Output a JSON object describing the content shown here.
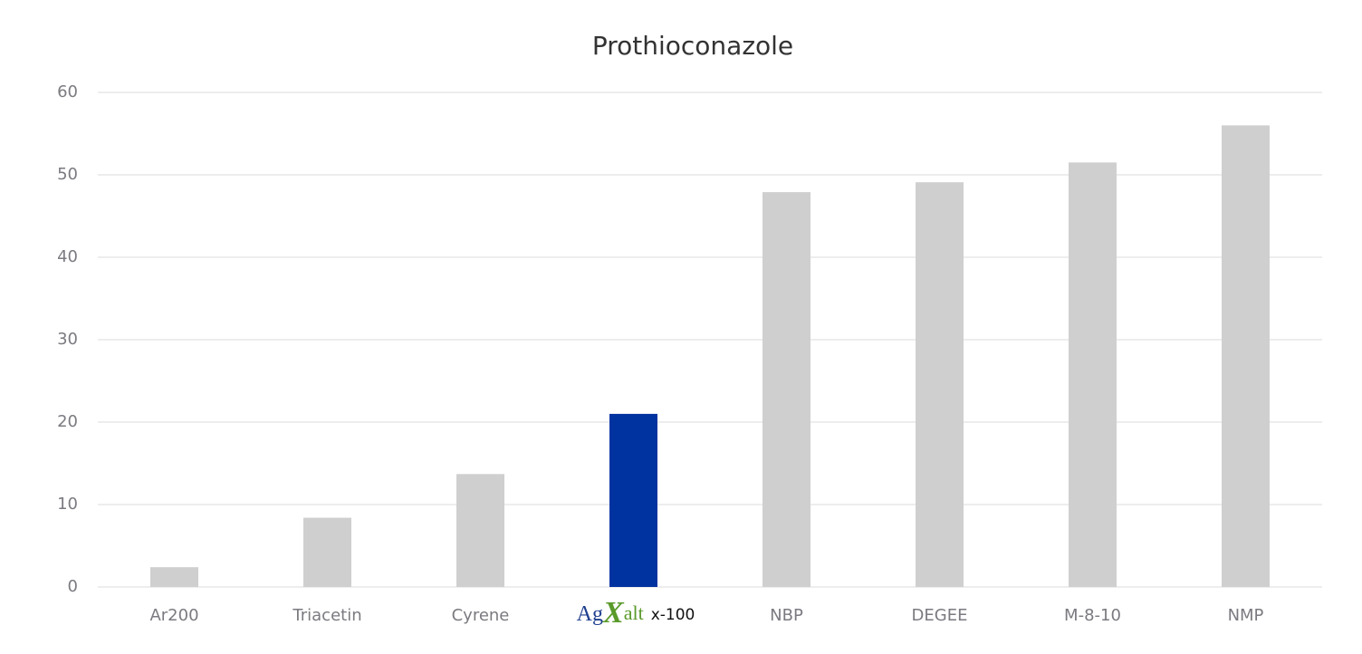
{
  "chart_data": {
    "type": "bar",
    "title": "Prothioconazole",
    "categories": [
      "Ar200",
      "Triacetin",
      "Cyrene",
      "x-100",
      "NBP",
      "DEGEE",
      "M-8-10",
      "NMP"
    ],
    "logo": [
      "Ag",
      "X",
      "alt"
    ],
    "values": [
      2.4,
      8.4,
      13.7,
      21.0,
      47.9,
      49.1,
      51.5,
      56.0
    ],
    "colors": [
      "#d0cfcf",
      "#d0cfcf",
      "#d0cfcf",
      "#0033a0",
      "#d0cfcf",
      "#d0cfcf",
      "#d0cfcf",
      "#d0cfcf"
    ],
    "ylim": [
      0,
      60
    ],
    "yticks": [
      0,
      10,
      20,
      30,
      40,
      50,
      60
    ],
    "grid": true
  }
}
